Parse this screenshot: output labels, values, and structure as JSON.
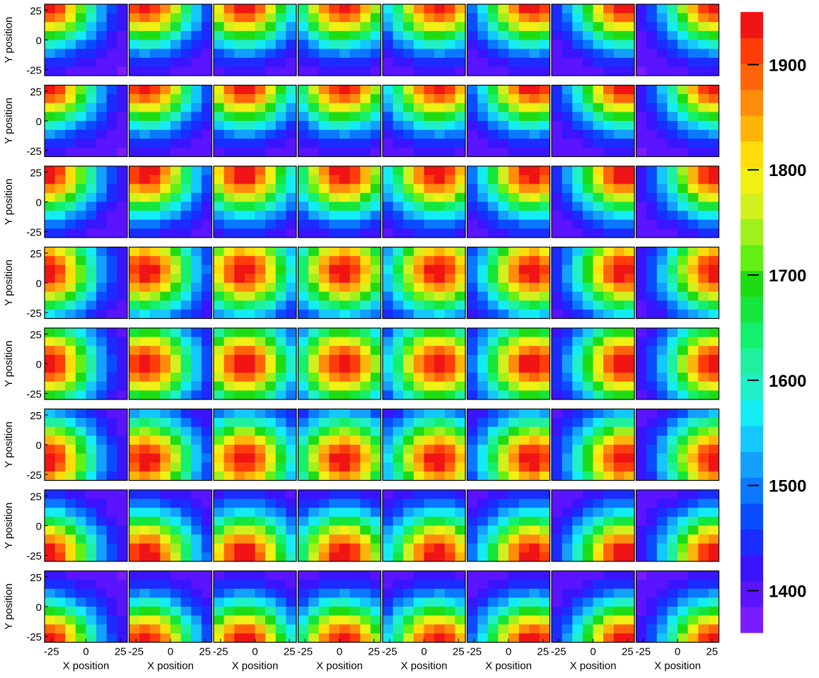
{
  "chart_data": {
    "type": "heatmap",
    "grid": {
      "rows": 8,
      "cols": 8
    },
    "cells_per_panel": [
      8,
      8
    ],
    "xlabel": "X position",
    "ylabel": "Y position",
    "x_ticks": [
      "-25",
      "0",
      "25"
    ],
    "y_ticks": [
      "25",
      "0",
      "-25"
    ],
    "xlim": [
      -30,
      30
    ],
    "ylim": [
      -30,
      30
    ],
    "colorbar": {
      "min": 1360,
      "max": 1950,
      "ticks": [
        "1900",
        "1800",
        "1700",
        "1600",
        "1500",
        "1400"
      ],
      "tick_values": [
        1900,
        1800,
        1700,
        1600,
        1500,
        1400
      ],
      "colors": [
        "#7a1cff",
        "#5a14ff",
        "#3a14ff",
        "#1a2cff",
        "#0a4cff",
        "#0a78ff",
        "#14a0ff",
        "#14c8ff",
        "#14ecf4",
        "#1ff0c8",
        "#1ff0a0",
        "#14f06e",
        "#14e63c",
        "#1edc14",
        "#64f014",
        "#a0f01e",
        "#d2f01e",
        "#f0f014",
        "#ffdc0a",
        "#ffb40a",
        "#ff8c0a",
        "#ff640a",
        "#ff3c0a",
        "#f01414"
      ]
    },
    "model": {
      "description_free": true,
      "peak": 1950,
      "base": 1380,
      "hot_x": [
        -28,
        -18,
        -8,
        3,
        10,
        17,
        22,
        27
      ],
      "hot_y": [
        30,
        30,
        24,
        10,
        0,
        -12,
        -24,
        -30
      ],
      "spread": 24
    }
  }
}
